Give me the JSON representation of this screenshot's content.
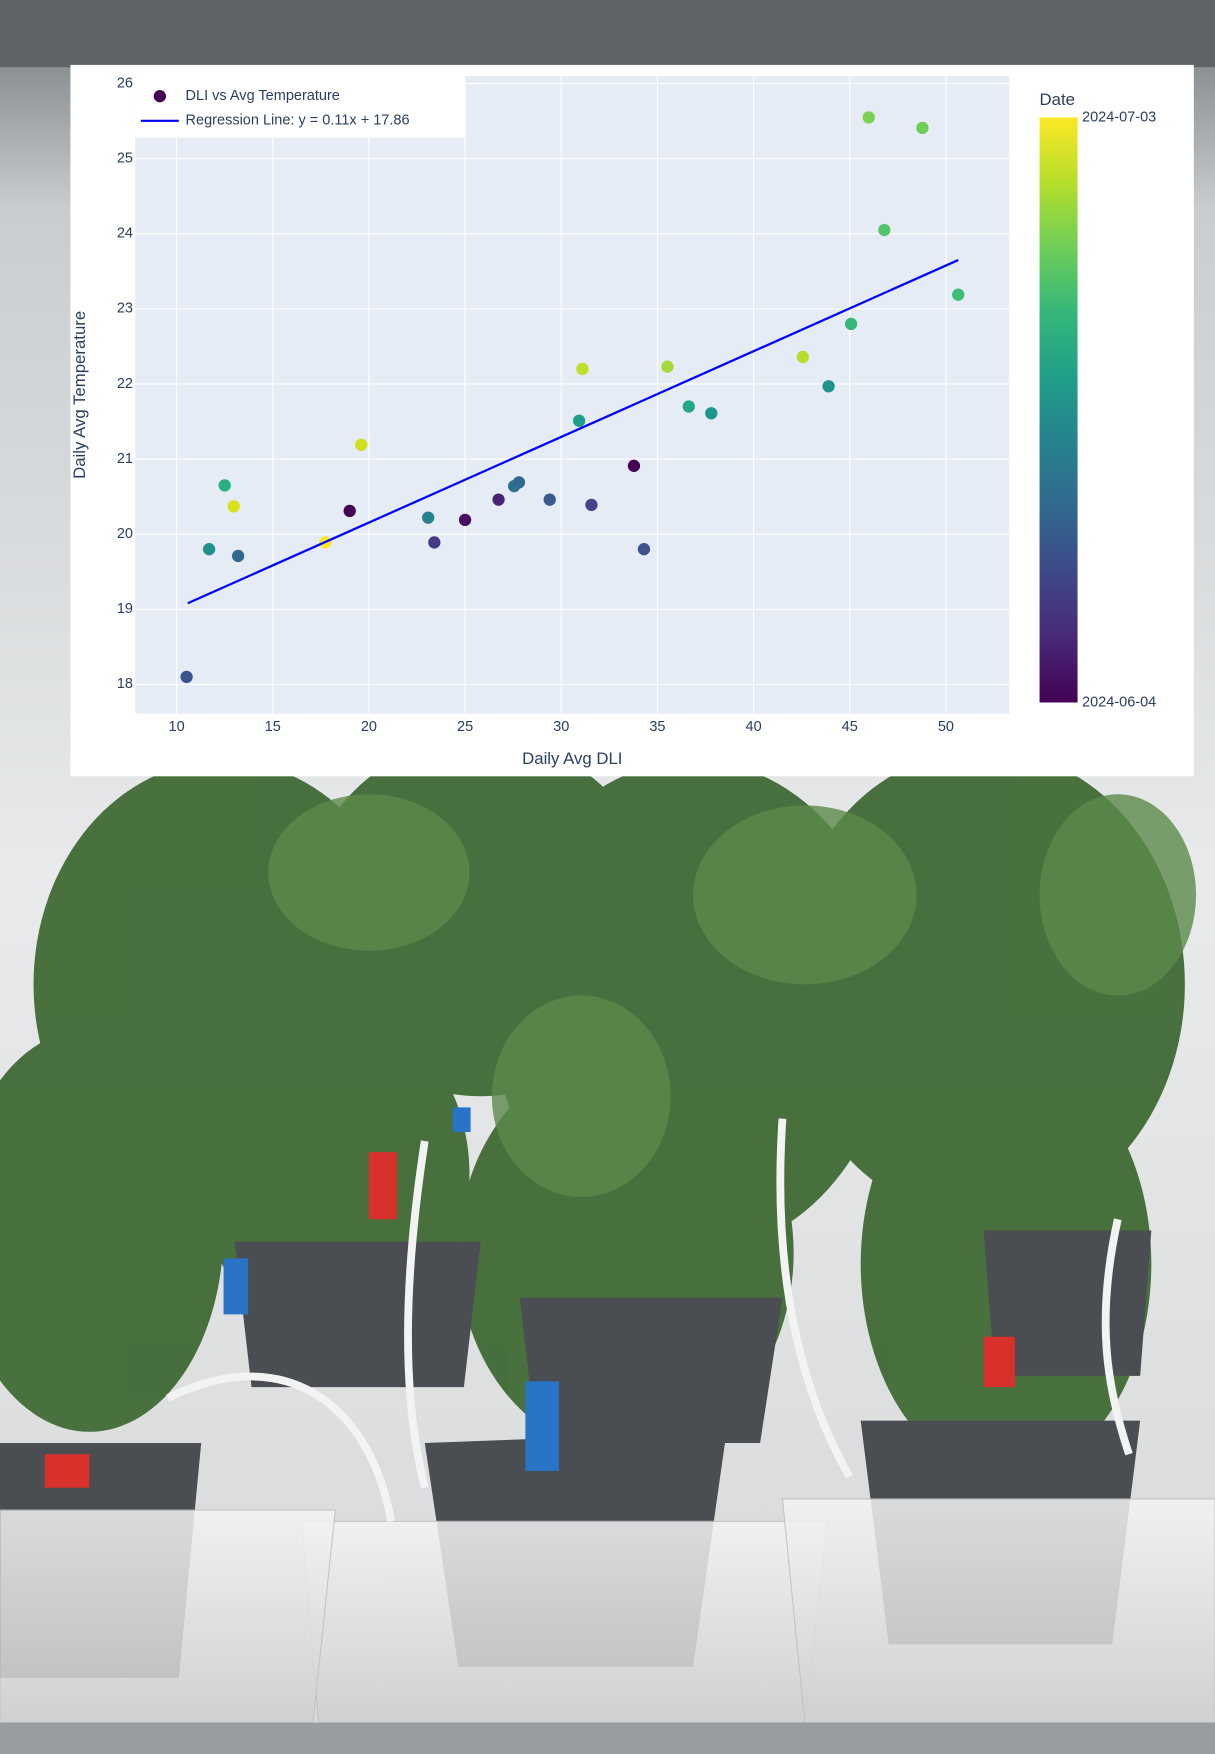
{
  "chart_data": {
    "type": "scatter",
    "x_label": "Daily Avg DLI",
    "y_label": "Daily Avg Temperature",
    "xlim": [
      7.85,
      53.3
    ],
    "ylim": [
      17.61,
      26.1
    ],
    "xticks": [
      10,
      15,
      20,
      25,
      30,
      35,
      40,
      45,
      50
    ],
    "yticks": [
      18,
      19,
      20,
      21,
      22,
      23,
      24,
      25,
      26
    ],
    "grid": true,
    "legend": "top-left",
    "series": [
      {
        "name": "DLI vs Avg Temperature",
        "type": "scatter",
        "color": "#440154",
        "x": [
          10.52,
          11.69,
          12.5,
          12.97,
          13.2,
          17.73,
          19.0,
          19.6,
          23.08,
          23.4,
          25.0,
          26.74,
          27.55,
          27.8,
          29.4,
          30.93,
          31.1,
          31.57,
          33.78,
          34.3,
          35.52,
          36.63,
          37.8,
          42.56,
          43.9,
          45.07,
          45.99,
          46.8,
          48.78,
          50.64
        ],
        "values": [
          18.1,
          19.8,
          20.65,
          20.37,
          19.71,
          19.89,
          20.31,
          21.19,
          20.22,
          19.89,
          20.19,
          20.46,
          20.64,
          20.69,
          20.46,
          21.51,
          22.2,
          20.39,
          20.91,
          19.8,
          22.23,
          21.7,
          21.61,
          22.36,
          21.97,
          22.8,
          25.55,
          24.05,
          25.41,
          23.19
        ],
        "colors": [
          "#3b528b",
          "#21918c",
          "#2ab07f",
          "#d8e219",
          "#31688e",
          "#fde725",
          "#440154",
          "#d0e11c",
          "#26828e",
          "#443a83",
          "#470d60",
          "#482475",
          "#2c728e",
          "#31688e",
          "#38598c",
          "#1f9e89",
          "#bddf26",
          "#414487",
          "#440154",
          "#3b528b",
          "#a5db36",
          "#22a884",
          "#1f968b",
          "#b5de2b",
          "#1f958b",
          "#35b779",
          "#7ad151",
          "#54c568",
          "#6ece58",
          "#3fbc73"
        ]
      },
      {
        "name": "Regression Line: y = 0.11x + 17.86",
        "type": "line",
        "color": "#0000ff",
        "x": [
          10.58,
          50.64
        ],
        "values": [
          19.08,
          23.65
        ]
      }
    ],
    "colorbar": {
      "title": "Date",
      "ticks": [
        "2024-06-04",
        "2024-07-03"
      ],
      "colors": [
        "#440154",
        "#482878",
        "#3e4989",
        "#31688e",
        "#26828e",
        "#1f9e89",
        "#35b779",
        "#6ece58",
        "#b5de2b",
        "#fde725"
      ]
    }
  }
}
